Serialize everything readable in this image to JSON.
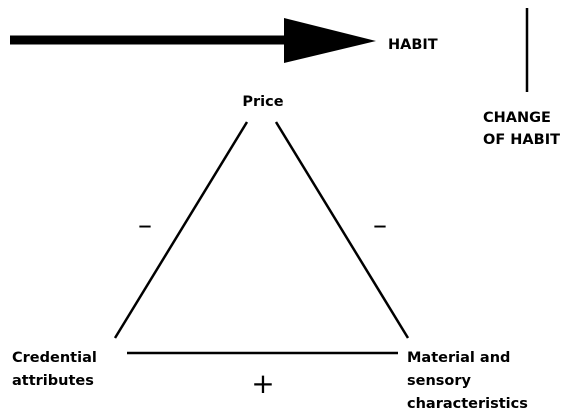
{
  "header": {
    "arrow_label": "HABIT",
    "change_label": [
      "CHANGE",
      "OF HABIT"
    ]
  },
  "nodes": [
    {
      "label": [
        "Price"
      ]
    },
    {
      "label": [
        "Credential",
        "attributes"
      ]
    },
    {
      "label": [
        "Material and",
        "sensory",
        "characteristics"
      ]
    }
  ],
  "edges": [
    {
      "from": "Price",
      "to": "Credential attributes",
      "sign": "–"
    },
    {
      "from": "Price",
      "to": "Material and sensory characteristics",
      "sign": "–"
    },
    {
      "from": "Credential attributes",
      "to": "Material and sensory characteristics",
      "sign": "+"
    }
  ]
}
